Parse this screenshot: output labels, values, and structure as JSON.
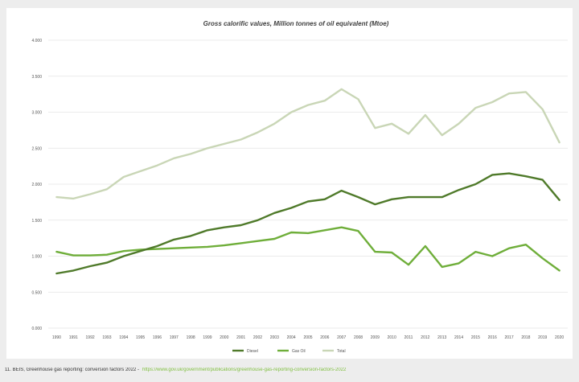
{
  "chart_data": {
    "type": "line",
    "title": "Gross calorific values, Million tonnes of oil equivalent (Mtoe)",
    "xlabel": "",
    "ylabel": "",
    "ylim": [
      0,
      4
    ],
    "y_ticks": [
      "0.000",
      "0.500",
      "1.000",
      "1.500",
      "2.000",
      "2.500",
      "3.000",
      "3.500",
      "4.000"
    ],
    "categories": [
      "1990",
      "1991",
      "1992",
      "1993",
      "1994",
      "1995",
      "1996",
      "1997",
      "1998",
      "1999",
      "2000",
      "2001",
      "2002",
      "2003",
      "2004",
      "2005",
      "2006",
      "2007",
      "2008",
      "2009",
      "2010",
      "2011",
      "2012",
      "2013",
      "2014",
      "2015",
      "2016",
      "2017",
      "2018",
      "2019",
      "2020"
    ],
    "series": [
      {
        "name": "Diesel",
        "color": "#4f7a2a",
        "values": [
          0.76,
          0.8,
          0.86,
          0.91,
          1.0,
          1.07,
          1.14,
          1.23,
          1.28,
          1.36,
          1.4,
          1.43,
          1.5,
          1.6,
          1.67,
          1.76,
          1.79,
          1.91,
          1.82,
          1.72,
          1.79,
          1.82,
          1.82,
          1.82,
          1.92,
          2.0,
          2.13,
          2.15,
          2.11,
          2.06,
          1.78
        ]
      },
      {
        "name": "Gas Oil",
        "color": "#6fae3a",
        "values": [
          1.06,
          1.01,
          1.01,
          1.02,
          1.07,
          1.09,
          1.1,
          1.11,
          1.12,
          1.13,
          1.15,
          1.18,
          1.21,
          1.24,
          1.33,
          1.32,
          1.36,
          1.4,
          1.35,
          1.06,
          1.05,
          0.88,
          1.14,
          0.85,
          0.9,
          1.06,
          1.0,
          1.11,
          1.16,
          0.97,
          0.8
        ]
      },
      {
        "name": "Total",
        "color": "#c9d6b6",
        "values": [
          1.82,
          1.8,
          1.86,
          1.93,
          2.1,
          2.18,
          2.26,
          2.36,
          2.42,
          2.5,
          2.56,
          2.62,
          2.72,
          2.84,
          3.0,
          3.1,
          3.16,
          3.32,
          3.18,
          2.78,
          2.84,
          2.7,
          2.96,
          2.68,
          2.84,
          3.06,
          3.14,
          3.26,
          3.28,
          3.04,
          2.58
        ]
      }
    ],
    "legend": "bottom",
    "grid": true
  },
  "footnote": {
    "text": "11. BEIS, Greenhouse gas reporting: conversion factors 2022 -",
    "link": "https://www.gov.uk/government/publications/greenhouse-gas-reporting-conversion-factors-2022"
  }
}
